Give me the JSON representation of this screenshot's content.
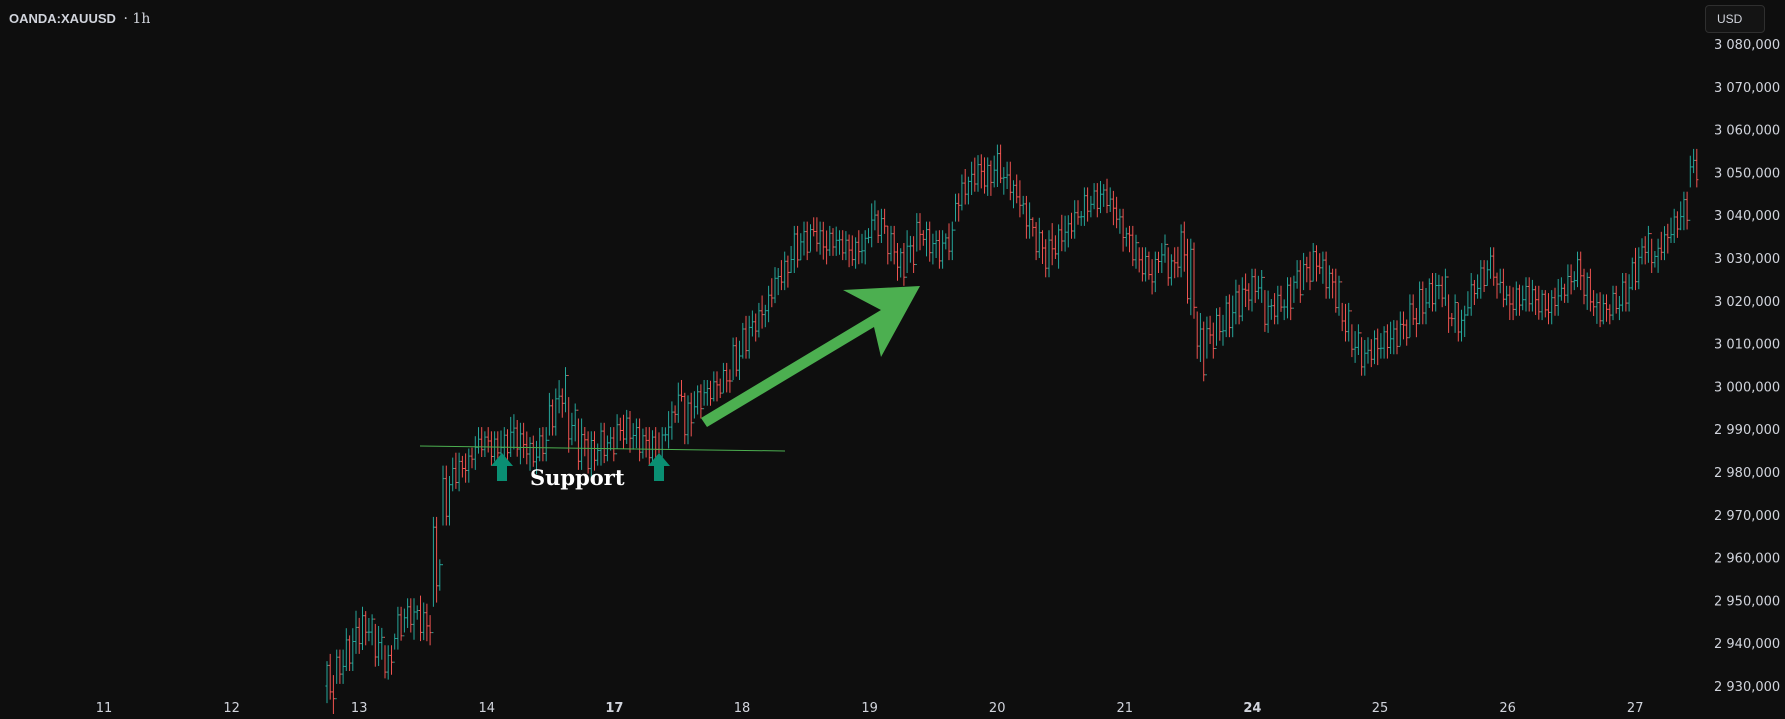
{
  "header": {
    "symbol": "OANDA:XAUUSD",
    "timeframe": "1h",
    "currency": "USD"
  },
  "colors": {
    "up": "#26a69a",
    "down": "#ef5350",
    "support_line": "#4caf50",
    "trend_arrow": "#4caf50",
    "support_arrows": "#0a8f73"
  },
  "chart_data": {
    "type": "candlestick",
    "title": "",
    "instrument": "OANDA:XAUUSD",
    "interval": "1h",
    "ylim": [
      2922,
      3083
    ],
    "yticks": [
      {
        "value": 2930,
        "label": "2 930,000"
      },
      {
        "value": 2940,
        "label": "2 940,000"
      },
      {
        "value": 2950,
        "label": "2 950,000"
      },
      {
        "value": 2960,
        "label": "2 960,000"
      },
      {
        "value": 2970,
        "label": "2 970,000"
      },
      {
        "value": 2980,
        "label": "2 980,000"
      },
      {
        "value": 2990,
        "label": "2 990,000"
      },
      {
        "value": 3000,
        "label": "3 000,000"
      },
      {
        "value": 3010,
        "label": "3 010,000"
      },
      {
        "value": 3020,
        "label": "3 020,000"
      },
      {
        "value": 3030,
        "label": "3 030,000"
      },
      {
        "value": 3040,
        "label": "3 040,000"
      },
      {
        "value": 3050,
        "label": "3 050,000"
      },
      {
        "value": 3060,
        "label": "3 060,000"
      },
      {
        "value": 3070,
        "label": "3 070,000"
      },
      {
        "value": 3080,
        "label": "3 080,000"
      }
    ],
    "xticks": [
      {
        "label": "11",
        "bold": false
      },
      {
        "label": "12",
        "bold": false
      },
      {
        "label": "13",
        "bold": false
      },
      {
        "label": "14",
        "bold": false
      },
      {
        "label": "17",
        "bold": true
      },
      {
        "label": "18",
        "bold": false
      },
      {
        "label": "19",
        "bold": false
      },
      {
        "label": "20",
        "bold": false
      },
      {
        "label": "21",
        "bold": false
      },
      {
        "label": "24",
        "bold": true
      },
      {
        "label": "25",
        "bold": false
      },
      {
        "label": "26",
        "bold": false
      },
      {
        "label": "27",
        "bold": false
      }
    ],
    "price_path": [
      [
        2924,
        2936
      ],
      [
        2932,
        2937
      ],
      [
        2935,
        2942
      ],
      [
        2939,
        2947
      ],
      [
        2941,
        2946
      ],
      [
        2936,
        2943
      ],
      [
        2933,
        2938
      ],
      [
        2940,
        2947
      ],
      [
        2944,
        2949
      ],
      [
        2942,
        2950
      ],
      [
        2941,
        2948
      ],
      [
        2950,
        2968
      ],
      [
        2969,
        2980
      ],
      [
        2977,
        2983
      ],
      [
        2979,
        2984
      ],
      [
        2982,
        2989
      ],
      [
        2985,
        2989
      ],
      [
        2983,
        2988
      ],
      [
        2984,
        2989
      ],
      [
        2985,
        2992
      ],
      [
        2983,
        2990
      ],
      [
        2981,
        2987
      ],
      [
        2984,
        2989
      ],
      [
        2990,
        2998
      ],
      [
        2994,
        3003
      ],
      [
        2986,
        2996
      ],
      [
        2982,
        2991
      ],
      [
        2980,
        2988
      ],
      [
        2983,
        2990
      ],
      [
        2984,
        2989
      ],
      [
        2987,
        2992
      ],
      [
        2986,
        2993
      ],
      [
        2984,
        2991
      ],
      [
        2983,
        2989
      ],
      [
        2982,
        2989
      ],
      [
        2987,
        2995
      ],
      [
        2993,
        3000
      ],
      [
        2988,
        2997
      ],
      [
        2994,
        2999
      ],
      [
        2997,
        3000
      ],
      [
        2998,
        3002
      ],
      [
        3000,
        3004
      ],
      [
        3003,
        3010
      ],
      [
        3008,
        3015
      ],
      [
        3012,
        3018
      ],
      [
        3015,
        3022
      ],
      [
        3020,
        3028
      ],
      [
        3024,
        3030
      ],
      [
        3028,
        3036
      ],
      [
        3031,
        3037
      ],
      [
        3033,
        3038
      ],
      [
        3030,
        3037
      ],
      [
        3032,
        3036
      ],
      [
        3031,
        3035
      ],
      [
        3029,
        3034
      ],
      [
        3030,
        3035
      ],
      [
        3034,
        3042
      ],
      [
        3035,
        3040
      ],
      [
        3030,
        3036
      ],
      [
        3025,
        3032
      ],
      [
        3028,
        3035
      ],
      [
        3033,
        3039
      ],
      [
        3030,
        3037
      ],
      [
        3029,
        3035
      ],
      [
        3031,
        3037
      ],
      [
        3040,
        3048
      ],
      [
        3044,
        3051
      ],
      [
        3047,
        3053
      ],
      [
        3046,
        3052
      ],
      [
        3048,
        3055
      ],
      [
        3045,
        3051
      ],
      [
        3041,
        3048
      ],
      [
        3036,
        3043
      ],
      [
        3031,
        3038
      ],
      [
        3027,
        3035
      ],
      [
        3029,
        3037
      ],
      [
        3033,
        3039
      ],
      [
        3036,
        3042
      ],
      [
        3039,
        3045
      ],
      [
        3041,
        3046
      ],
      [
        3042,
        3047
      ],
      [
        3038,
        3045
      ],
      [
        3033,
        3040
      ],
      [
        3029,
        3036
      ],
      [
        3026,
        3031
      ],
      [
        3023,
        3030
      ],
      [
        3028,
        3034
      ],
      [
        3025,
        3031
      ],
      [
        3027,
        3037
      ],
      [
        3016,
        3033
      ],
      [
        3002,
        3016
      ],
      [
        3008,
        3015
      ],
      [
        3011,
        3017
      ],
      [
        3013,
        3020
      ],
      [
        3016,
        3024
      ],
      [
        3019,
        3026
      ],
      [
        3021,
        3026
      ],
      [
        3014,
        3021
      ],
      [
        3016,
        3022
      ],
      [
        3017,
        3024
      ],
      [
        3021,
        3028
      ],
      [
        3024,
        3030
      ],
      [
        3026,
        3032
      ],
      [
        3022,
        3030
      ],
      [
        3018,
        3026
      ],
      [
        3012,
        3018
      ],
      [
        3007,
        3013
      ],
      [
        3004,
        3010
      ],
      [
        3006,
        3012
      ],
      [
        3008,
        3013
      ],
      [
        3009,
        3014
      ],
      [
        3011,
        3016
      ],
      [
        3013,
        3020
      ],
      [
        3016,
        3023
      ],
      [
        3019,
        3025
      ],
      [
        3020,
        3026
      ],
      [
        3014,
        3020
      ],
      [
        3012,
        3018
      ],
      [
        3018,
        3025
      ],
      [
        3022,
        3028
      ],
      [
        3025,
        3031
      ],
      [
        3020,
        3026
      ],
      [
        3017,
        3022
      ],
      [
        3018,
        3023
      ],
      [
        3019,
        3024
      ],
      [
        3017,
        3022
      ],
      [
        3016,
        3021
      ],
      [
        3018,
        3024
      ],
      [
        3021,
        3027
      ],
      [
        3024,
        3030
      ],
      [
        3019,
        3026
      ],
      [
        3015,
        3021
      ],
      [
        3016,
        3020
      ],
      [
        3017,
        3022
      ],
      [
        3019,
        3025
      ],
      [
        3024,
        3031
      ],
      [
        3030,
        3036
      ],
      [
        3028,
        3033
      ],
      [
        3031,
        3037
      ],
      [
        3035,
        3040
      ],
      [
        3038,
        3044
      ],
      [
        3048,
        3054
      ]
    ],
    "annotations": {
      "support_label": "Support",
      "support_level": 2980
    }
  }
}
